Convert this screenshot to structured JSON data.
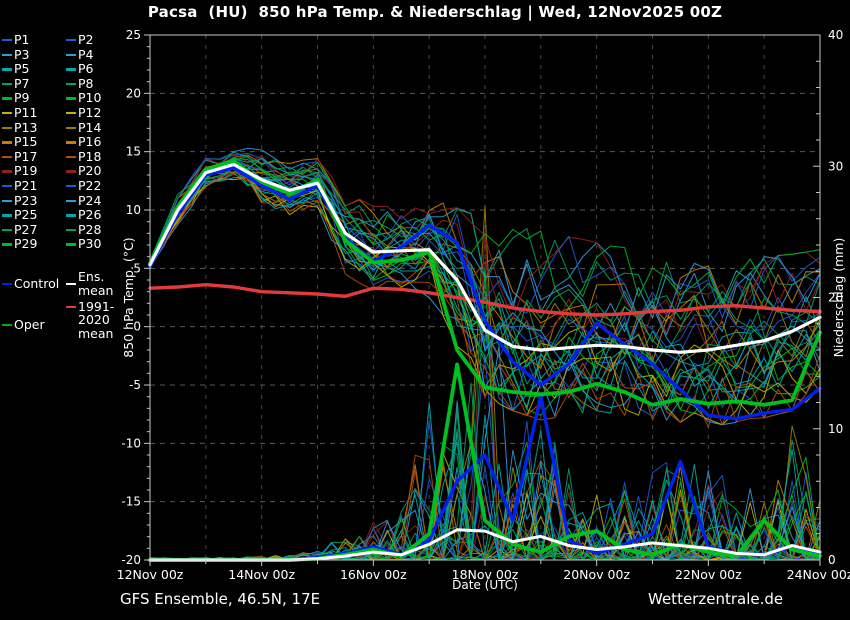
{
  "title": "Pacsa  (HU)  850 hPa Temp. & Niederschlag | Wed, 12Nov2025 00Z",
  "footer": {
    "left": "GFS Ensemble, 46.5N, 17E",
    "right": "Wetterzentrale.de"
  },
  "legend": {
    "member_labels": [
      "P1",
      "P2",
      "P3",
      "P4",
      "P5",
      "P6",
      "P7",
      "P8",
      "P9",
      "P10",
      "P11",
      "P12",
      "P13",
      "P14",
      "P15",
      "P16",
      "P17",
      "P18",
      "P19",
      "P20",
      "P21",
      "P22",
      "P23",
      "P24",
      "P25",
      "P26",
      "P27",
      "P28",
      "P29",
      "P30"
    ],
    "specials": {
      "control": {
        "label": "Control",
        "color": "#0022ee"
      },
      "ens_mean": {
        "label": "Ens. mean",
        "color": "#ffffff"
      },
      "climate": {
        "label": "1991-2020 mean",
        "color": "#e33b3b"
      },
      "oper": {
        "label": "Oper",
        "color": "#00a80e"
      }
    }
  },
  "chart_data": {
    "type": "line",
    "title": "Pacsa  (HU)  850 hPa Temp. & Niederschlag | Wed, 12Nov2025 00Z",
    "xlabel": "Date (UTC)",
    "ylabel_left": "850 hPa Temp. (°C)",
    "ylabel_right": "Niederschlag (mm)",
    "x_tick_labels": [
      "12Nov 00z",
      "14Nov 00z",
      "16Nov 00z",
      "18Nov 00z",
      "20Nov 00z",
      "22Nov 00z",
      "24Nov 00z"
    ],
    "x_range_days": 12,
    "time_step_hours": 12,
    "ylim_left": [
      -20,
      25
    ],
    "ytick_step_left": 5,
    "ylim_right": [
      0,
      40
    ],
    "ytick_step_right": 10,
    "grid": "dashed",
    "member_colors": [
      "#2457d6",
      "#2e9ad6",
      "#00a8a8",
      "#00a060",
      "#00b822",
      "#c4b000",
      "#93800a",
      "#c87d00",
      "#b34a0d",
      "#8f2020"
    ],
    "series": {
      "temp": {
        "mean": [
          5.3,
          10.0,
          13.2,
          13.9,
          12.6,
          11.7,
          12.3,
          8.0,
          6.4,
          6.5,
          6.6,
          4.0,
          -0.3,
          -1.7,
          -2.0,
          -1.8,
          -1.6,
          -1.7,
          -2.0,
          -2.2,
          -2.0,
          -1.6,
          -1.2,
          -0.4,
          0.8
        ],
        "control": [
          5.2,
          9.7,
          13.0,
          13.6,
          12.1,
          10.9,
          12.1,
          7.6,
          5.6,
          6.8,
          8.7,
          7.2,
          0.5,
          -3.0,
          -5.0,
          -3.2,
          0.3,
          -1.5,
          -3.2,
          -5.4,
          -7.6,
          -7.9,
          -7.4,
          -7.1,
          -5.3
        ],
        "oper": [
          5.4,
          10.3,
          13.5,
          14.2,
          12.4,
          11.4,
          12.6,
          7.4,
          5.5,
          5.7,
          6.4,
          -2.0,
          -5.2,
          -5.6,
          -5.8,
          -5.6,
          -4.9,
          -5.6,
          -6.7,
          -6.2,
          -6.6,
          -6.4,
          -6.7,
          -6.3,
          -0.5
        ],
        "climate": [
          3.3,
          3.4,
          3.6,
          3.4,
          3.0,
          2.9,
          2.8,
          2.6,
          3.3,
          3.2,
          2.9,
          2.5,
          2.1,
          1.6,
          1.3,
          1.1,
          1.0,
          1.1,
          1.3,
          1.4,
          1.7,
          1.8,
          1.6,
          1.4,
          1.3
        ],
        "ens_min": [
          4.6,
          8.6,
          12.0,
          12.4,
          10.6,
          9.6,
          10.2,
          4.5,
          3.0,
          3.4,
          2.5,
          -3.5,
          -6.0,
          -7.2,
          -8.0,
          -7.6,
          -7.2,
          -7.6,
          -8.0,
          -8.2,
          -8.6,
          -8.2,
          -7.8,
          -7.2,
          -6.6
        ],
        "ens_max": [
          5.9,
          11.4,
          14.4,
          15.3,
          15.8,
          14.5,
          14.4,
          11.6,
          10.4,
          10.2,
          11.0,
          10.2,
          9.2,
          8.6,
          8.2,
          7.8,
          7.2,
          6.8,
          6.2,
          5.8,
          5.2,
          5.6,
          6.0,
          6.2,
          6.6
        ]
      },
      "precip": {
        "mean": [
          0,
          0,
          0,
          0,
          0,
          0,
          0.1,
          0.3,
          0.6,
          0.4,
          1.2,
          2.3,
          2.2,
          1.4,
          1.8,
          1.1,
          0.8,
          1.0,
          1.3,
          1.1,
          0.9,
          0.5,
          0.4,
          1.1,
          0.6
        ],
        "control": [
          0,
          0,
          0,
          0,
          0,
          0,
          0.2,
          0.5,
          1.0,
          0.4,
          1.5,
          6.0,
          8.0,
          3.0,
          12.5,
          1.5,
          0.5,
          1.2,
          2.0,
          7.5,
          1.0,
          0.5,
          0.4,
          1.0,
          0.4
        ],
        "oper": [
          0,
          0,
          0,
          0,
          0,
          0,
          0.1,
          0.4,
          0.8,
          0.3,
          2.0,
          14.9,
          3.0,
          1.2,
          0.6,
          1.8,
          2.2,
          0.8,
          0.4,
          1.2,
          0.6,
          0.3,
          3.0,
          0.8,
          0.3
        ],
        "member_max": [
          0.2,
          0.2,
          0.2,
          0.2,
          0.3,
          0.4,
          0.8,
          2,
          3,
          4,
          12,
          15,
          27,
          9,
          12.5,
          7,
          5,
          7,
          8,
          8,
          8,
          6,
          5,
          11,
          5
        ],
        "forced_spikes": [
          {
            "member": 12,
            "u": 24,
            "mm": 27
          },
          {
            "member": 24,
            "u": 20,
            "mm": 12
          },
          {
            "member": 9,
            "u": 27,
            "mm": 9
          }
        ]
      }
    },
    "line_colors": {
      "mean": "#ffffff",
      "control": "#0022ee",
      "oper": "#00c020",
      "climate": "#e33b3b"
    }
  }
}
